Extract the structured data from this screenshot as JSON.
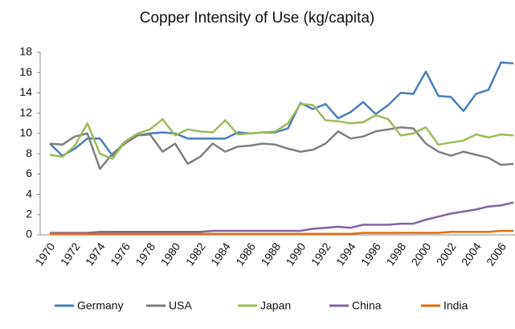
{
  "chart_data": {
    "type": "line",
    "title": "Copper Intensity of Use (kg/capita)",
    "categories": [
      "1970",
      null,
      "1972",
      null,
      "1974",
      null,
      "1976",
      null,
      "1978",
      null,
      "1980",
      null,
      "1982",
      null,
      "1984",
      null,
      "1986",
      null,
      "1988",
      null,
      "1990",
      null,
      "1992",
      null,
      "1994",
      null,
      "1996",
      null,
      "1998",
      null,
      "2000",
      null,
      "2002",
      null,
      "2004",
      null,
      "2006",
      null
    ],
    "series": [
      {
        "name": "Germany",
        "color": "#4a7ebb",
        "values": [
          9.0,
          7.8,
          8.5,
          9.5,
          9.5,
          7.8,
          9.2,
          9.8,
          10.0,
          10.1,
          10.0,
          9.5,
          9.5,
          9.5,
          9.5,
          10.1,
          10.0,
          10.1,
          10.1,
          10.5,
          13.0,
          12.4,
          12.9,
          11.5,
          12.1,
          13.1,
          11.9,
          12.8,
          14.0,
          13.9,
          16.1,
          13.7,
          13.6,
          12.2,
          13.9,
          14.3,
          17.0,
          16.9
        ]
      },
      {
        "name": "USA",
        "color": "#7f7f7f",
        "values": [
          9.0,
          8.9,
          9.7,
          10.0,
          6.5,
          8.0,
          9.0,
          9.8,
          9.9,
          8.2,
          9.0,
          7.0,
          7.7,
          9.0,
          8.2,
          8.7,
          8.8,
          9.0,
          8.9,
          8.5,
          8.2,
          8.4,
          9.0,
          10.2,
          9.5,
          9.7,
          10.2,
          10.4,
          10.6,
          10.5,
          9.0,
          8.2,
          7.8,
          8.2,
          7.9,
          7.6,
          6.9,
          7.0
        ]
      },
      {
        "name": "Japan",
        "color": "#9bbb59",
        "values": [
          7.9,
          7.7,
          8.8,
          11.0,
          8.0,
          7.5,
          9.2,
          10.0,
          10.4,
          11.4,
          9.8,
          10.4,
          10.2,
          10.1,
          11.3,
          9.9,
          10.0,
          10.1,
          10.2,
          11.0,
          12.9,
          12.8,
          11.3,
          11.2,
          11.0,
          11.1,
          11.8,
          11.4,
          9.8,
          10.0,
          10.6,
          8.9,
          9.1,
          9.3,
          9.9,
          9.6,
          9.9,
          9.8
        ]
      },
      {
        "name": "China",
        "color": "#8064a2",
        "values": [
          0.2,
          0.2,
          0.2,
          0.2,
          0.3,
          0.3,
          0.3,
          0.3,
          0.3,
          0.3,
          0.3,
          0.3,
          0.3,
          0.4,
          0.4,
          0.4,
          0.4,
          0.4,
          0.4,
          0.4,
          0.4,
          0.6,
          0.7,
          0.8,
          0.7,
          1.0,
          1.0,
          1.0,
          1.1,
          1.1,
          1.5,
          1.8,
          2.1,
          2.3,
          2.5,
          2.8,
          2.9,
          3.2
        ]
      },
      {
        "name": "India",
        "color": "#e46c0a",
        "values": [
          0.1,
          0.1,
          0.1,
          0.1,
          0.1,
          0.1,
          0.1,
          0.1,
          0.1,
          0.1,
          0.1,
          0.1,
          0.1,
          0.1,
          0.1,
          0.1,
          0.1,
          0.1,
          0.1,
          0.1,
          0.1,
          0.1,
          0.1,
          0.1,
          0.1,
          0.2,
          0.2,
          0.2,
          0.2,
          0.2,
          0.2,
          0.2,
          0.3,
          0.3,
          0.3,
          0.3,
          0.4,
          0.4
        ]
      }
    ],
    "ylim": [
      0,
      18
    ],
    "yticks": [
      0,
      2,
      4,
      6,
      8,
      10,
      12,
      14,
      16,
      18
    ],
    "grid": false,
    "legend": "bottom"
  }
}
